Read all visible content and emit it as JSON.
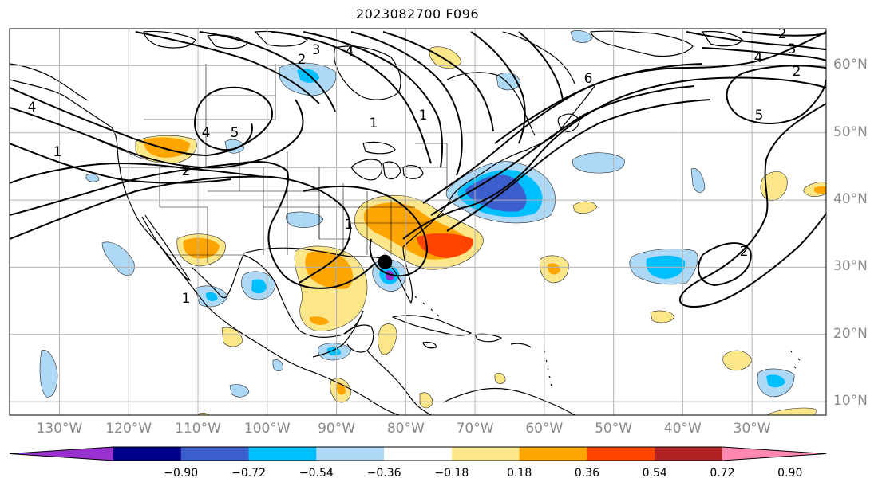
{
  "title": "2023082700 F096",
  "latitude_labels": [
    {
      "text": "60°N",
      "lat": 60
    },
    {
      "text": "50°N",
      "lat": 50
    },
    {
      "text": "40°N",
      "lat": 40
    },
    {
      "text": "30°N",
      "lat": 30
    },
    {
      "text": "20°N",
      "lat": 20
    },
    {
      "text": "10°N",
      "lat": 10
    }
  ],
  "longitude_labels": [
    {
      "text": "130°W",
      "lon": -130
    },
    {
      "text": "120°W",
      "lon": -120
    },
    {
      "text": "110°W",
      "lon": -110
    },
    {
      "text": "100°W",
      "lon": -100
    },
    {
      "text": "90°W",
      "lon": -90
    },
    {
      "text": "80°W",
      "lon": -80
    },
    {
      "text": "70°W",
      "lon": -70
    },
    {
      "text": "60°W",
      "lon": -60
    },
    {
      "text": "50°W",
      "lon": -50
    },
    {
      "text": "40°W",
      "lon": -40
    },
    {
      "text": "30°W",
      "lon": -30
    }
  ],
  "colorbar": {
    "colors": [
      "#9b30d0",
      "#00008b",
      "#3a5fcd",
      "#00bfff",
      "#add8f6",
      "#ffffff",
      "#fce68a",
      "#ffa500",
      "#ff4500",
      "#b22222",
      "#ff88b0"
    ],
    "ticks": [
      "−0.90",
      "−0.72",
      "−0.54",
      "−0.36",
      "−0.18",
      "0.18",
      "0.36",
      "0.54",
      "0.72",
      "0.90"
    ]
  },
  "contour_labels": [
    "2",
    "3",
    "4",
    "2",
    "3",
    "4",
    "6",
    "5",
    "4",
    "1",
    "2",
    "4",
    "5",
    "1",
    "2",
    "1",
    "1",
    "1",
    "2"
  ],
  "marker": {
    "name": "storm-center",
    "lon": -83.0,
    "lat": 30.8,
    "color": "#000000"
  },
  "colors": {
    "grid": "#b3b3b3",
    "land": "#000000",
    "contour": "#000000",
    "label": "#888888"
  }
}
